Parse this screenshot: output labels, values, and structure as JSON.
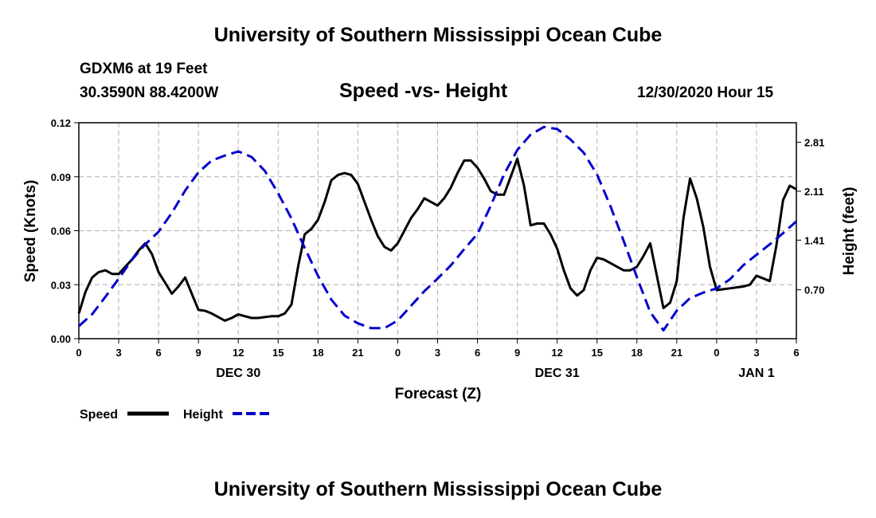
{
  "header": {
    "title": "University of Southern Mississippi Ocean Cube",
    "station": "GDXM6 at 19 Feet",
    "location": "30.3590N 88.4200W",
    "plot_title": "Speed -vs- Height",
    "date_hour": "12/30/2020 Hour 15"
  },
  "footer": {
    "title": "University of Southern Mississippi Ocean Cube"
  },
  "legend": {
    "speed_label": "Speed",
    "height_label": "Height",
    "speed_color": "#000000",
    "height_color": "#0000cc"
  },
  "chart_data": {
    "type": "line",
    "title": "Speed -vs- Height",
    "xlabel": "Forecast (Z)",
    "ylabel": "Speed (Knots)",
    "y2label": "Height (feet)",
    "x_range_hours": [
      0,
      54
    ],
    "ylim": [
      0,
      0.12
    ],
    "y2lim": [
      0,
      3.09
    ],
    "x_ticks": [
      "0",
      "3",
      "6",
      "9",
      "12",
      "15",
      "18",
      "21",
      "0",
      "3",
      "6",
      "9",
      "12",
      "15",
      "18",
      "21",
      "0",
      "3",
      "6"
    ],
    "y_ticks": [
      "0.00",
      "0.03",
      "0.06",
      "0.09",
      "0.12"
    ],
    "y2_ticks": [
      "0.70",
      "1.41",
      "2.11",
      "2.81"
    ],
    "day_labels": [
      {
        "label": "DEC 30",
        "hour": 12
      },
      {
        "label": "DEC 31",
        "hour": 36
      },
      {
        "label": "JAN 1",
        "hour": 51
      }
    ],
    "grid": true,
    "series": [
      {
        "name": "Speed",
        "axis": "left",
        "dash": "solid",
        "x": [
          0,
          0.5,
          1,
          1.5,
          2,
          2.5,
          3,
          3.5,
          4,
          4.5,
          5,
          5.5,
          6,
          6.5,
          7,
          7.5,
          8,
          8.5,
          9,
          9.5,
          10,
          10.5,
          11,
          11.5,
          12,
          12.5,
          13,
          13.5,
          14,
          14.5,
          15,
          15.5,
          16,
          16.5,
          17,
          17.5,
          18,
          18.5,
          19,
          19.5,
          20,
          20.5,
          21,
          21.5,
          22,
          22.5,
          23,
          23.5,
          24,
          24.5,
          25,
          25.5,
          26,
          26.5,
          27,
          27.5,
          28,
          28.5,
          29,
          29.5,
          30,
          30.5,
          31,
          31.5,
          32,
          32.5,
          33,
          33.5,
          34,
          34.5,
          35,
          35.5,
          36,
          36.5,
          37,
          37.5,
          38,
          38.5,
          39,
          39.5,
          40,
          40.5,
          41,
          41.5,
          42,
          42.5,
          43,
          43.5,
          44,
          44.5,
          45,
          45.5,
          46,
          46.5,
          47,
          47.5,
          48,
          48.5,
          49,
          49.5,
          50,
          50.5,
          51,
          51.5,
          52,
          52.5,
          53,
          53.5,
          54
        ],
        "values": [
          0.014,
          0.026,
          0.034,
          0.037,
          0.038,
          0.036,
          0.036,
          0.04,
          0.044,
          0.049,
          0.053,
          0.047,
          0.037,
          0.031,
          0.025,
          0.029,
          0.034,
          0.025,
          0.016,
          0.0155,
          0.014,
          0.012,
          0.01,
          0.0115,
          0.0135,
          0.0125,
          0.0115,
          0.0115,
          0.012,
          0.0125,
          0.0125,
          0.014,
          0.019,
          0.04,
          0.058,
          0.061,
          0.066,
          0.076,
          0.088,
          0.091,
          0.092,
          0.091,
          0.086,
          0.076,
          0.066,
          0.057,
          0.051,
          0.049,
          0.053,
          0.06,
          0.067,
          0.072,
          0.078,
          0.076,
          0.074,
          0.078,
          0.084,
          0.092,
          0.099,
          0.099,
          0.095,
          0.089,
          0.082,
          0.08,
          0.08,
          0.09,
          0.1,
          0.085,
          0.063,
          0.064,
          0.064,
          0.058,
          0.05,
          0.038,
          0.028,
          0.024,
          0.027,
          0.038,
          0.045,
          0.044,
          0.042,
          0.04,
          0.038,
          0.038,
          0.04,
          0.046,
          0.053,
          0.035,
          0.017,
          0.02,
          0.032,
          0.067,
          0.089,
          0.078,
          0.062,
          0.04,
          0.027,
          0.0275,
          0.028,
          0.0285,
          0.029,
          0.03,
          0.035,
          0.0335,
          0.032,
          0.052,
          0.077,
          0.085,
          0.083
        ]
      },
      {
        "name": "Height",
        "axis": "right",
        "dash": "dashed",
        "x": [
          0,
          1,
          2,
          3,
          4,
          5,
          6,
          7,
          8,
          9,
          10,
          11,
          12,
          13,
          14,
          15,
          16,
          17,
          18,
          19,
          20,
          21,
          22,
          23,
          24,
          25,
          26,
          27,
          28,
          29,
          30,
          31,
          32,
          33,
          34,
          35,
          36,
          37,
          38,
          39,
          40,
          41,
          42,
          43,
          44,
          45,
          46,
          47,
          48,
          49,
          50,
          51,
          52,
          53,
          54
        ],
        "values": [
          0.18,
          0.35,
          0.6,
          0.86,
          1.13,
          1.35,
          1.53,
          1.8,
          2.12,
          2.38,
          2.55,
          2.62,
          2.68,
          2.6,
          2.4,
          2.08,
          1.72,
          1.3,
          0.9,
          0.56,
          0.33,
          0.22,
          0.15,
          0.15,
          0.26,
          0.47,
          0.68,
          0.86,
          1.05,
          1.28,
          1.5,
          1.9,
          2.35,
          2.7,
          2.92,
          3.03,
          3.0,
          2.85,
          2.66,
          2.35,
          1.9,
          1.4,
          0.88,
          0.38,
          0.12,
          0.4,
          0.58,
          0.66,
          0.72,
          0.85,
          1.05,
          1.2,
          1.35,
          1.51,
          1.68
        ]
      }
    ]
  }
}
